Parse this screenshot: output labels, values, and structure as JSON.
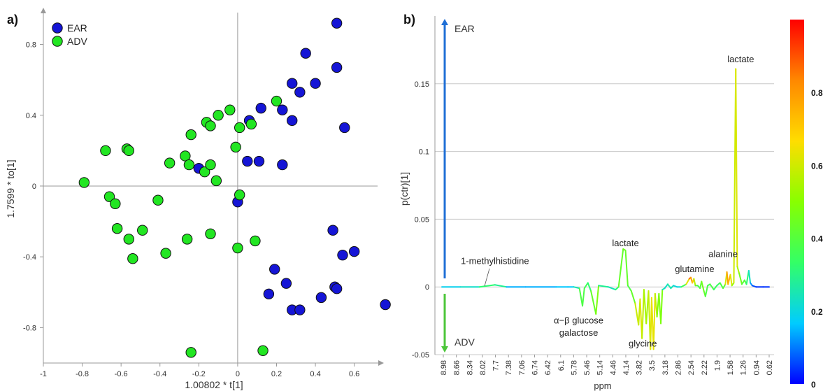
{
  "panel_labels": [
    "a)",
    "b)"
  ],
  "colors": {
    "ear": "#1515d6",
    "adv": "#22e622",
    "axis": "#999999",
    "gridline": "#c8c8c8",
    "text": "#333333"
  },
  "chart_data": [
    {
      "type": "scatter",
      "panel": "a)",
      "xlabel": "1.00802 * t[1]",
      "ylabel": "1.7599 * to[1]",
      "xlim": [
        -1,
        0.72
      ],
      "ylim": [
        -1.0,
        0.98
      ],
      "x_ticks": [
        -1,
        -0.8,
        -0.6,
        -0.4,
        -0.2,
        0,
        0.2,
        0.4,
        0.6
      ],
      "x_tick_labels": [
        "-1",
        "-0.8",
        "-0.6",
        "-0.4",
        "-0.2",
        "0",
        "0.2",
        "0.4",
        "0.6"
      ],
      "y_ticks": [
        0.8,
        0.4,
        0,
        -0.4,
        -0.8
      ],
      "y_tick_labels": [
        "0.8",
        "0.4",
        "0",
        "-0.4",
        "-0.8"
      ],
      "legend_position": "top-left",
      "series": [
        {
          "name": "EAR",
          "color": "#1515d6",
          "points": [
            [
              0.51,
              0.92
            ],
            [
              0.35,
              0.75
            ],
            [
              0.51,
              0.67
            ],
            [
              0.28,
              0.58
            ],
            [
              0.4,
              0.58
            ],
            [
              0.32,
              0.53
            ],
            [
              0.12,
              0.44
            ],
            [
              0.23,
              0.43
            ],
            [
              0.06,
              0.37
            ],
            [
              0.28,
              0.37
            ],
            [
              0.55,
              0.33
            ],
            [
              0.05,
              0.14
            ],
            [
              0.11,
              0.14
            ],
            [
              0.23,
              0.12
            ],
            [
              -0.2,
              0.1
            ],
            [
              0.0,
              -0.09
            ],
            [
              0.49,
              -0.25
            ],
            [
              0.54,
              -0.39
            ],
            [
              0.6,
              -0.37
            ],
            [
              0.19,
              -0.47
            ],
            [
              0.25,
              -0.55
            ],
            [
              0.5,
              -0.57
            ],
            [
              0.51,
              -0.58
            ],
            [
              0.16,
              -0.61
            ],
            [
              0.43,
              -0.63
            ],
            [
              0.28,
              -0.7
            ],
            [
              0.32,
              -0.7
            ],
            [
              0.76,
              -0.67
            ]
          ]
        },
        {
          "name": "ADV",
          "color": "#22e622",
          "points": [
            [
              -0.79,
              0.02
            ],
            [
              -0.68,
              0.2
            ],
            [
              -0.57,
              0.21
            ],
            [
              -0.56,
              0.2
            ],
            [
              -0.66,
              -0.06
            ],
            [
              -0.63,
              -0.1
            ],
            [
              -0.62,
              -0.24
            ],
            [
              -0.56,
              -0.3
            ],
            [
              -0.54,
              -0.41
            ],
            [
              -0.49,
              -0.25
            ],
            [
              -0.41,
              -0.08
            ],
            [
              -0.37,
              -0.38
            ],
            [
              -0.35,
              0.13
            ],
            [
              -0.27,
              0.17
            ],
            [
              -0.25,
              0.12
            ],
            [
              -0.24,
              0.29
            ],
            [
              -0.17,
              0.08
            ],
            [
              -0.16,
              0.36
            ],
            [
              -0.14,
              0.34
            ],
            [
              -0.14,
              0.12
            ],
            [
              -0.14,
              -0.27
            ],
            [
              -0.11,
              0.03
            ],
            [
              -0.1,
              0.4
            ],
            [
              -0.04,
              0.43
            ],
            [
              -0.01,
              0.22
            ],
            [
              0.01,
              0.33
            ],
            [
              0.07,
              0.35
            ],
            [
              0.01,
              -0.05
            ],
            [
              0.0,
              -0.35
            ],
            [
              0.2,
              0.48
            ],
            [
              0.09,
              -0.31
            ],
            [
              -0.26,
              -0.3
            ],
            [
              -0.24,
              -0.94
            ],
            [
              0.13,
              -0.93
            ]
          ]
        }
      ]
    },
    {
      "type": "line",
      "panel": "b)",
      "xlabel": "ppm",
      "ylabel": "p(ctr)[1]",
      "xlim": [
        8.98,
        0.46
      ],
      "ylim": [
        -0.05,
        0.2
      ],
      "x_tick_labels": [
        "8.98",
        "8.66",
        "8.34",
        "8.02",
        "7.7",
        "7.38",
        "7.06",
        "6.74",
        "6.42",
        "6.1",
        "5.78",
        "5.46",
        "5.14",
        "4.46",
        "4.14",
        "3.82",
        "3.5",
        "3.18",
        "2.86",
        "2.54",
        "2.22",
        "1.9",
        "1.58",
        "1.26",
        "0.94",
        "0.62"
      ],
      "y_ticks": [
        0.15,
        0.1,
        0.05,
        0,
        -0.05
      ],
      "y_tick_labels": [
        "0.15",
        "0.1",
        "0.05",
        "0",
        "-0.05"
      ],
      "grid": "horizontal",
      "arrow_up_label": "EAR",
      "arrow_down_label": "ADV",
      "annotations": [
        {
          "text": "lactate",
          "x": 1.2,
          "y": 0.166
        },
        {
          "text": "lactate",
          "x": 4.2,
          "y": 0.03
        },
        {
          "text": "alanine",
          "x": 1.66,
          "y": 0.022
        },
        {
          "text": "glutamine",
          "x": 2.4,
          "y": 0.011
        },
        {
          "text": "1-methylhistidine",
          "x": 7.6,
          "y": 0.017
        },
        {
          "text": "α−β glucose",
          "x": 5.42,
          "y": -0.027
        },
        {
          "text": "galactose",
          "x": 5.42,
          "y": -0.036
        },
        {
          "text": "glycine",
          "x": 3.75,
          "y": -0.044
        }
      ],
      "colorbar": {
        "min": 0,
        "max": 1,
        "tick_values": [
          0,
          0.2,
          0.4,
          0.6,
          0.8
        ],
        "tick_labels": [
          "0",
          "0.2",
          "0.4",
          "0.6",
          "0.8"
        ],
        "gradient_colors": [
          "#0000ff",
          "#00ccff",
          "#33ff66",
          "#88ff00",
          "#ffdd00",
          "#ff8800",
          "#ff0000"
        ]
      },
      "spectrum_points": [
        [
          8.98,
          0,
          0.2
        ],
        [
          8.5,
          0,
          0.25
        ],
        [
          8.0,
          0,
          0.3
        ],
        [
          7.6,
          0.0015,
          0.5
        ],
        [
          7.3,
          0,
          0.2
        ],
        [
          6.8,
          0,
          0.15
        ],
        [
          6.0,
          0,
          0.2
        ],
        [
          5.7,
          0,
          0.2
        ],
        [
          5.55,
          0,
          0.2
        ],
        [
          5.4,
          -0.001,
          0.4
        ],
        [
          5.32,
          -0.014,
          0.55
        ],
        [
          5.27,
          -0.001,
          0.4
        ],
        [
          5.18,
          0.003,
          0.5
        ],
        [
          5.1,
          -0.003,
          0.3
        ],
        [
          4.97,
          -0.02,
          0.75
        ],
        [
          4.9,
          0.001,
          0.4
        ],
        [
          4.65,
          0,
          0.3
        ],
        [
          4.46,
          -0.002,
          0.3
        ],
        [
          4.38,
          0.0,
          0.5
        ],
        [
          4.26,
          0.028,
          0.55
        ],
        [
          4.2,
          0.027,
          0.55
        ],
        [
          4.14,
          0.001,
          0.5
        ],
        [
          4.05,
          -0.003,
          0.45
        ],
        [
          3.95,
          -0.012,
          0.6
        ],
        [
          3.86,
          -0.028,
          0.82
        ],
        [
          3.82,
          -0.009,
          0.6
        ],
        [
          3.77,
          -0.038,
          0.88
        ],
        [
          3.72,
          -0.002,
          0.5
        ],
        [
          3.66,
          -0.027,
          0.8
        ],
        [
          3.6,
          -0.003,
          0.5
        ],
        [
          3.55,
          -0.046,
          0.9
        ],
        [
          3.52,
          -0.008,
          0.6
        ],
        [
          3.47,
          -0.046,
          0.92
        ],
        [
          3.43,
          -0.005,
          0.6
        ],
        [
          3.38,
          -0.022,
          0.78
        ],
        [
          3.33,
          -0.005,
          0.4
        ],
        [
          3.28,
          -0.027,
          0.75
        ],
        [
          3.24,
          -0.002,
          0.4
        ],
        [
          3.18,
          -0.001,
          0.2
        ],
        [
          3.1,
          0.002,
          0.35
        ],
        [
          3.02,
          -0.001,
          0.3
        ],
        [
          2.95,
          0.001,
          0.3
        ],
        [
          2.86,
          0,
          0.2
        ],
        [
          2.75,
          0,
          0.3
        ],
        [
          2.62,
          0.002,
          0.6
        ],
        [
          2.54,
          0.006,
          0.9
        ],
        [
          2.5,
          0.007,
          0.95
        ],
        [
          2.46,
          0.003,
          0.8
        ],
        [
          2.42,
          0.006,
          0.85
        ],
        [
          2.38,
          0.001,
          0.5
        ],
        [
          2.32,
          0.001,
          0.5
        ],
        [
          2.26,
          -0.001,
          0.4
        ],
        [
          2.22,
          0.004,
          0.6
        ],
        [
          2.16,
          -0.003,
          0.5
        ],
        [
          2.12,
          -0.007,
          0.55
        ],
        [
          2.06,
          0.001,
          0.4
        ],
        [
          2.0,
          0.002,
          0.5
        ],
        [
          1.9,
          -0.002,
          0.45
        ],
        [
          1.82,
          0.001,
          0.4
        ],
        [
          1.74,
          0.003,
          0.45
        ],
        [
          1.66,
          -0.001,
          0.5
        ],
        [
          1.6,
          0.002,
          0.5
        ],
        [
          1.56,
          0.011,
          0.95
        ],
        [
          1.53,
          0.002,
          0.8
        ],
        [
          1.47,
          0.009,
          0.9
        ],
        [
          1.43,
          0.001,
          0.6
        ],
        [
          1.38,
          0.003,
          0.65
        ],
        [
          1.33,
          0.161,
          0.78
        ],
        [
          1.29,
          0.015,
          0.7
        ],
        [
          1.24,
          0.01,
          0.6
        ],
        [
          1.17,
          0.002,
          0.5
        ],
        [
          1.1,
          0.005,
          0.5
        ],
        [
          1.05,
          0.002,
          0.45
        ],
        [
          0.99,
          0.012,
          0.35
        ],
        [
          0.95,
          0.003,
          0.2
        ],
        [
          0.9,
          0.001,
          0.1
        ],
        [
          0.8,
          0,
          0.05
        ],
        [
          0.62,
          0,
          0.05
        ],
        [
          0.46,
          0,
          0.05
        ]
      ]
    }
  ]
}
